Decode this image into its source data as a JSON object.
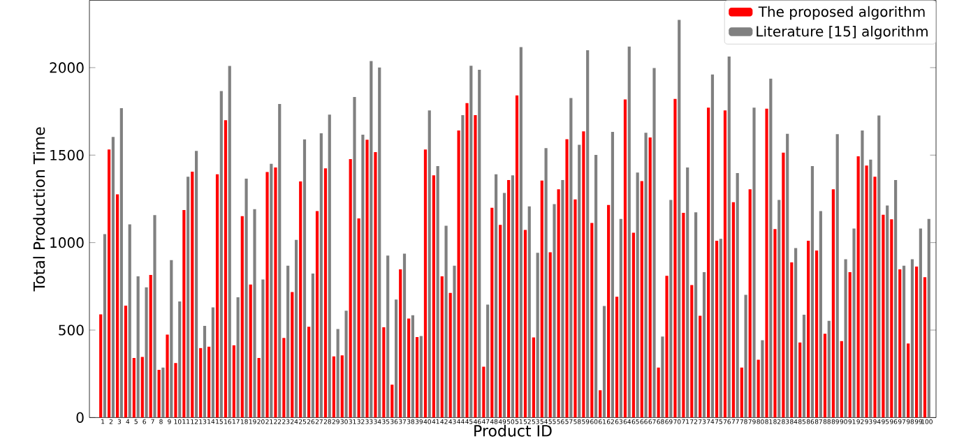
{
  "chart_data": {
    "type": "bar",
    "xlabel": "Product ID",
    "ylabel": "Total Production Time",
    "categories": [
      "1",
      "2",
      "3",
      "4",
      "5",
      "6",
      "7",
      "8",
      "9",
      "10",
      "11",
      "12",
      "13",
      "14",
      "15",
      "16",
      "17",
      "18",
      "19",
      "20",
      "21",
      "22",
      "23",
      "24",
      "25",
      "26",
      "27",
      "28",
      "29",
      "30",
      "31",
      "32",
      "33",
      "34",
      "35",
      "36",
      "37",
      "38",
      "39",
      "40",
      "41",
      "42",
      "43",
      "44",
      "45",
      "46",
      "47",
      "48",
      "49",
      "50",
      "51",
      "52",
      "53",
      "54",
      "55",
      "56",
      "57",
      "58",
      "59",
      "60",
      "61",
      "62",
      "63",
      "64",
      "65",
      "66",
      "67",
      "68",
      "69",
      "70",
      "71",
      "72",
      "73",
      "74",
      "75",
      "76",
      "77",
      "78",
      "79",
      "80",
      "81",
      "82",
      "83",
      "84",
      "85",
      "86",
      "87",
      "88",
      "89",
      "90",
      "91",
      "92",
      "93",
      "94",
      "95",
      "96",
      "97",
      "98",
      "99",
      "100"
    ],
    "series": [
      {
        "name": "The proposed algorithm",
        "color": "#ff0000",
        "values": [
          590,
          1532,
          1276,
          640,
          341,
          347,
          815,
          273,
          474,
          312,
          1186,
          1405,
          397,
          405,
          1390,
          1700,
          413,
          1151,
          760,
          341,
          1403,
          1429,
          455,
          717,
          1350,
          519,
          1180,
          1424,
          349,
          355,
          1477,
          1138,
          1588,
          1517,
          516,
          188,
          847,
          566,
          460,
          1532,
          1384,
          807,
          712,
          1641,
          1797,
          1729,
          291,
          1199,
          1101,
          1358,
          1842,
          1072,
          458,
          1355,
          945,
          1305,
          1591,
          1247,
          1636,
          1112,
          156,
          1215,
          691,
          1818,
          1056,
          1352,
          1601,
          286,
          810,
          1821,
          1170,
          757,
          582,
          1771,
          1011,
          1755,
          1231,
          286,
          1305,
          331,
          1765,
          1077,
          1514,
          887,
          429,
          1011,
          955,
          479,
          1305,
          437,
          831,
          1493,
          1440,
          1376,
          1159,
          1133,
          847,
          423,
          863,
          802
        ]
      },
      {
        "name": "Literature [15] algorithm",
        "color": "#808080",
        "values": [
          1048,
          1604,
          1768,
          1104,
          807,
          744,
          1157,
          286,
          900,
          664,
          1376,
          1524,
          524,
          630,
          1866,
          2010,
          688,
          1366,
          1191,
          789,
          1450,
          1792,
          868,
          1016,
          1590,
          823,
          1625,
          1731,
          506,
          611,
          1832,
          1617,
          2038,
          2001,
          926,
          675,
          937,
          585,
          466,
          1755,
          1437,
          1096,
          868,
          1729,
          2011,
          1988,
          646,
          1390,
          1284,
          1384,
          2117,
          1207,
          942,
          1540,
          1220,
          1358,
          1826,
          1559,
          2099,
          1501,
          638,
          1633,
          1135,
          2120,
          1400,
          1628,
          1998,
          463,
          1244,
          2273,
          1429,
          1173,
          831,
          1961,
          1022,
          2064,
          1397,
          701,
          1771,
          442,
          1937,
          1244,
          1622,
          969,
          588,
          1437,
          1180,
          553,
          1620,
          905,
          1080,
          1641,
          1474,
          1726,
          1212,
          1358,
          868,
          905,
          1080,
          1135
        ]
      }
    ],
    "ylim": [
      0,
      2385
    ],
    "yticks": [
      0,
      500,
      1000,
      1500,
      2000
    ],
    "legend": "top right"
  }
}
